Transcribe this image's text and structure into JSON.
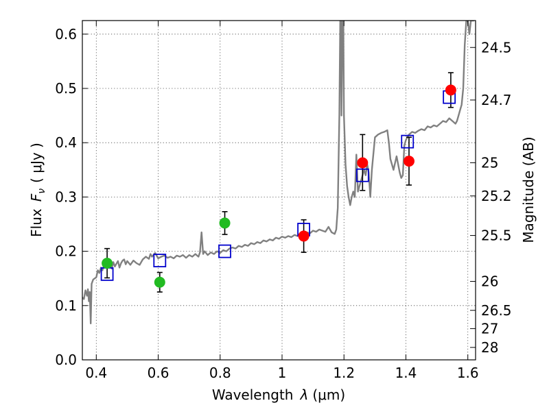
{
  "chart_data": {
    "type": "scatter",
    "xlabel_prefix": "Wavelength",
    "xlabel_symbol": "λ",
    "xlabel_unit": "(μm)",
    "ylabel_prefix": "Flux",
    "ylabel_symbol": "F",
    "ylabel_subscript": "ν",
    "ylabel_unit": "( μJy )",
    "y2label": "Magnitude (AB)",
    "xlim": [
      0.355,
      1.625
    ],
    "ylim": [
      0.0,
      0.625
    ],
    "xticks": [
      {
        "v": 0.4,
        "label": "0.4"
      },
      {
        "v": 0.6,
        "label": "0.6"
      },
      {
        "v": 0.8,
        "label": "0.8"
      },
      {
        "v": 1.0,
        "label": "1"
      },
      {
        "v": 1.2,
        "label": "1.2"
      },
      {
        "v": 1.4,
        "label": "1.4"
      },
      {
        "v": 1.6,
        "label": "1.6"
      }
    ],
    "yticks": [
      {
        "v": 0.0,
        "label": "0.0"
      },
      {
        "v": 0.1,
        "label": "0.1"
      },
      {
        "v": 0.2,
        "label": "0.2"
      },
      {
        "v": 0.3,
        "label": "0.3"
      },
      {
        "v": 0.4,
        "label": "0.4"
      },
      {
        "v": 0.5,
        "label": "0.5"
      },
      {
        "v": 0.6,
        "label": "0.6"
      }
    ],
    "y2ticks": [
      {
        "mag": 24.5,
        "label": "24.5"
      },
      {
        "mag": 24.7,
        "label": "24.7"
      },
      {
        "mag": 25,
        "label": "25"
      },
      {
        "mag": 25.2,
        "label": "25.2"
      },
      {
        "mag": 25.5,
        "label": "25.5"
      },
      {
        "mag": 26,
        "label": "26"
      },
      {
        "mag": 26.5,
        "label": "26.5"
      },
      {
        "mag": 27,
        "label": "27"
      },
      {
        "mag": 28,
        "label": "28"
      }
    ],
    "grid": true,
    "colors": {
      "spectrum": "#808080",
      "model": "#0000cc",
      "green": "#22bb22",
      "red": "#ff0000",
      "errorbar": "#000000"
    },
    "series": [
      {
        "kind": "spectrum",
        "points": [
          [
            0.355,
            0.115
          ],
          [
            0.36,
            0.112
          ],
          [
            0.365,
            0.128
          ],
          [
            0.37,
            0.118
          ],
          [
            0.373,
            0.13
          ],
          [
            0.376,
            0.108
          ],
          [
            0.379,
            0.125
          ],
          [
            0.382,
            0.067
          ],
          [
            0.385,
            0.14
          ],
          [
            0.39,
            0.148
          ],
          [
            0.395,
            0.15
          ],
          [
            0.4,
            0.152
          ],
          [
            0.405,
            0.165
          ],
          [
            0.41,
            0.16
          ],
          [
            0.415,
            0.17
          ],
          [
            0.42,
            0.165
          ],
          [
            0.425,
            0.175
          ],
          [
            0.43,
            0.17
          ],
          [
            0.435,
            0.18
          ],
          [
            0.44,
            0.172
          ],
          [
            0.445,
            0.175
          ],
          [
            0.45,
            0.168
          ],
          [
            0.455,
            0.18
          ],
          [
            0.46,
            0.172
          ],
          [
            0.465,
            0.177
          ],
          [
            0.47,
            0.182
          ],
          [
            0.475,
            0.17
          ],
          [
            0.48,
            0.178
          ],
          [
            0.485,
            0.183
          ],
          [
            0.49,
            0.185
          ],
          [
            0.495,
            0.176
          ],
          [
            0.5,
            0.182
          ],
          [
            0.51,
            0.175
          ],
          [
            0.52,
            0.183
          ],
          [
            0.53,
            0.178
          ],
          [
            0.54,
            0.175
          ],
          [
            0.55,
            0.185
          ],
          [
            0.56,
            0.19
          ],
          [
            0.57,
            0.186
          ],
          [
            0.575,
            0.195
          ],
          [
            0.58,
            0.19
          ],
          [
            0.59,
            0.197
          ],
          [
            0.6,
            0.187
          ],
          [
            0.61,
            0.19
          ],
          [
            0.62,
            0.192
          ],
          [
            0.63,
            0.188
          ],
          [
            0.64,
            0.19
          ],
          [
            0.65,
            0.187
          ],
          [
            0.66,
            0.192
          ],
          [
            0.67,
            0.19
          ],
          [
            0.68,
            0.193
          ],
          [
            0.69,
            0.188
          ],
          [
            0.7,
            0.193
          ],
          [
            0.71,
            0.19
          ],
          [
            0.72,
            0.195
          ],
          [
            0.73,
            0.19
          ],
          [
            0.735,
            0.198
          ],
          [
            0.74,
            0.235
          ],
          [
            0.745,
            0.195
          ],
          [
            0.75,
            0.2
          ],
          [
            0.76,
            0.193
          ],
          [
            0.77,
            0.198
          ],
          [
            0.78,
            0.195
          ],
          [
            0.79,
            0.2
          ],
          [
            0.8,
            0.197
          ],
          [
            0.81,
            0.202
          ],
          [
            0.82,
            0.2
          ],
          [
            0.83,
            0.205
          ],
          [
            0.84,
            0.207
          ],
          [
            0.85,
            0.205
          ],
          [
            0.86,
            0.21
          ],
          [
            0.87,
            0.208
          ],
          [
            0.88,
            0.212
          ],
          [
            0.89,
            0.21
          ],
          [
            0.9,
            0.215
          ],
          [
            0.91,
            0.213
          ],
          [
            0.92,
            0.217
          ],
          [
            0.93,
            0.215
          ],
          [
            0.94,
            0.22
          ],
          [
            0.95,
            0.218
          ],
          [
            0.96,
            0.222
          ],
          [
            0.97,
            0.22
          ],
          [
            0.98,
            0.225
          ],
          [
            0.99,
            0.223
          ],
          [
            1.0,
            0.227
          ],
          [
            1.01,
            0.225
          ],
          [
            1.02,
            0.228
          ],
          [
            1.03,
            0.226
          ],
          [
            1.04,
            0.23
          ],
          [
            1.05,
            0.228
          ],
          [
            1.06,
            0.232
          ],
          [
            1.07,
            0.23
          ],
          [
            1.08,
            0.235
          ],
          [
            1.09,
            0.233
          ],
          [
            1.1,
            0.238
          ],
          [
            1.11,
            0.236
          ],
          [
            1.12,
            0.24
          ],
          [
            1.13,
            0.238
          ],
          [
            1.14,
            0.236
          ],
          [
            1.15,
            0.245
          ],
          [
            1.16,
            0.235
          ],
          [
            1.17,
            0.232
          ],
          [
            1.175,
            0.24
          ],
          [
            1.18,
            0.28
          ],
          [
            1.185,
            0.45
          ],
          [
            1.188,
            0.625
          ],
          [
            1.19,
            0.625
          ],
          [
            1.192,
            0.45
          ],
          [
            1.195,
            0.625
          ],
          [
            1.198,
            0.625
          ],
          [
            1.2,
            0.45
          ],
          [
            1.205,
            0.36
          ],
          [
            1.21,
            0.32
          ],
          [
            1.215,
            0.3
          ],
          [
            1.22,
            0.285
          ],
          [
            1.225,
            0.3
          ],
          [
            1.23,
            0.31
          ],
          [
            1.235,
            0.3
          ],
          [
            1.24,
            0.378
          ],
          [
            1.245,
            0.31
          ],
          [
            1.25,
            0.32
          ],
          [
            1.255,
            0.33
          ],
          [
            1.26,
            0.34
          ],
          [
            1.265,
            0.35
          ],
          [
            1.27,
            0.34
          ],
          [
            1.275,
            0.36
          ],
          [
            1.28,
            0.345
          ],
          [
            1.285,
            0.3
          ],
          [
            1.29,
            0.35
          ],
          [
            1.3,
            0.41
          ],
          [
            1.31,
            0.415
          ],
          [
            1.32,
            0.418
          ],
          [
            1.33,
            0.42
          ],
          [
            1.34,
            0.423
          ],
          [
            1.345,
            0.4
          ],
          [
            1.35,
            0.37
          ],
          [
            1.36,
            0.35
          ],
          [
            1.37,
            0.375
          ],
          [
            1.38,
            0.345
          ],
          [
            1.385,
            0.335
          ],
          [
            1.39,
            0.34
          ],
          [
            1.395,
            0.395
          ],
          [
            1.4,
            0.405
          ],
          [
            1.41,
            0.415
          ],
          [
            1.42,
            0.42
          ],
          [
            1.43,
            0.418
          ],
          [
            1.44,
            0.422
          ],
          [
            1.45,
            0.425
          ],
          [
            1.46,
            0.423
          ],
          [
            1.47,
            0.43
          ],
          [
            1.48,
            0.428
          ],
          [
            1.49,
            0.432
          ],
          [
            1.5,
            0.43
          ],
          [
            1.51,
            0.435
          ],
          [
            1.52,
            0.44
          ],
          [
            1.53,
            0.438
          ],
          [
            1.54,
            0.445
          ],
          [
            1.55,
            0.44
          ],
          [
            1.56,
            0.435
          ],
          [
            1.565,
            0.44
          ],
          [
            1.57,
            0.45
          ],
          [
            1.575,
            0.46
          ],
          [
            1.58,
            0.47
          ],
          [
            1.585,
            0.5
          ],
          [
            1.59,
            0.58
          ],
          [
            1.595,
            0.625
          ],
          [
            1.6,
            0.625
          ],
          [
            1.605,
            0.6
          ],
          [
            1.61,
            0.625
          ],
          [
            1.615,
            0.625
          ],
          [
            1.62,
            0.625
          ]
        ]
      },
      {
        "kind": "model-squares",
        "points": [
          [
            0.435,
            0.158
          ],
          [
            0.605,
            0.183
          ],
          [
            0.815,
            0.2
          ],
          [
            1.07,
            0.24
          ],
          [
            1.26,
            0.34
          ],
          [
            1.405,
            0.402
          ],
          [
            1.54,
            0.484
          ]
        ]
      },
      {
        "kind": "observed-green",
        "points": [
          {
            "x": 0.435,
            "y": 0.178,
            "err_lo": 0.027,
            "err_hi": 0.027
          },
          {
            "x": 0.605,
            "y": 0.143,
            "err_lo": 0.018,
            "err_hi": 0.018
          },
          {
            "x": 0.815,
            "y": 0.252,
            "err_lo": 0.021,
            "err_hi": 0.021
          }
        ]
      },
      {
        "kind": "observed-red",
        "points": [
          {
            "x": 1.07,
            "y": 0.228,
            "err_lo": 0.03,
            "err_hi": 0.03
          },
          {
            "x": 1.26,
            "y": 0.363,
            "err_lo": 0.051,
            "err_hi": 0.052
          },
          {
            "x": 1.41,
            "y": 0.366,
            "err_lo": 0.044,
            "err_hi": 0.044
          },
          {
            "x": 1.545,
            "y": 0.497,
            "err_lo": 0.032,
            "err_hi": 0.032
          }
        ]
      }
    ]
  }
}
